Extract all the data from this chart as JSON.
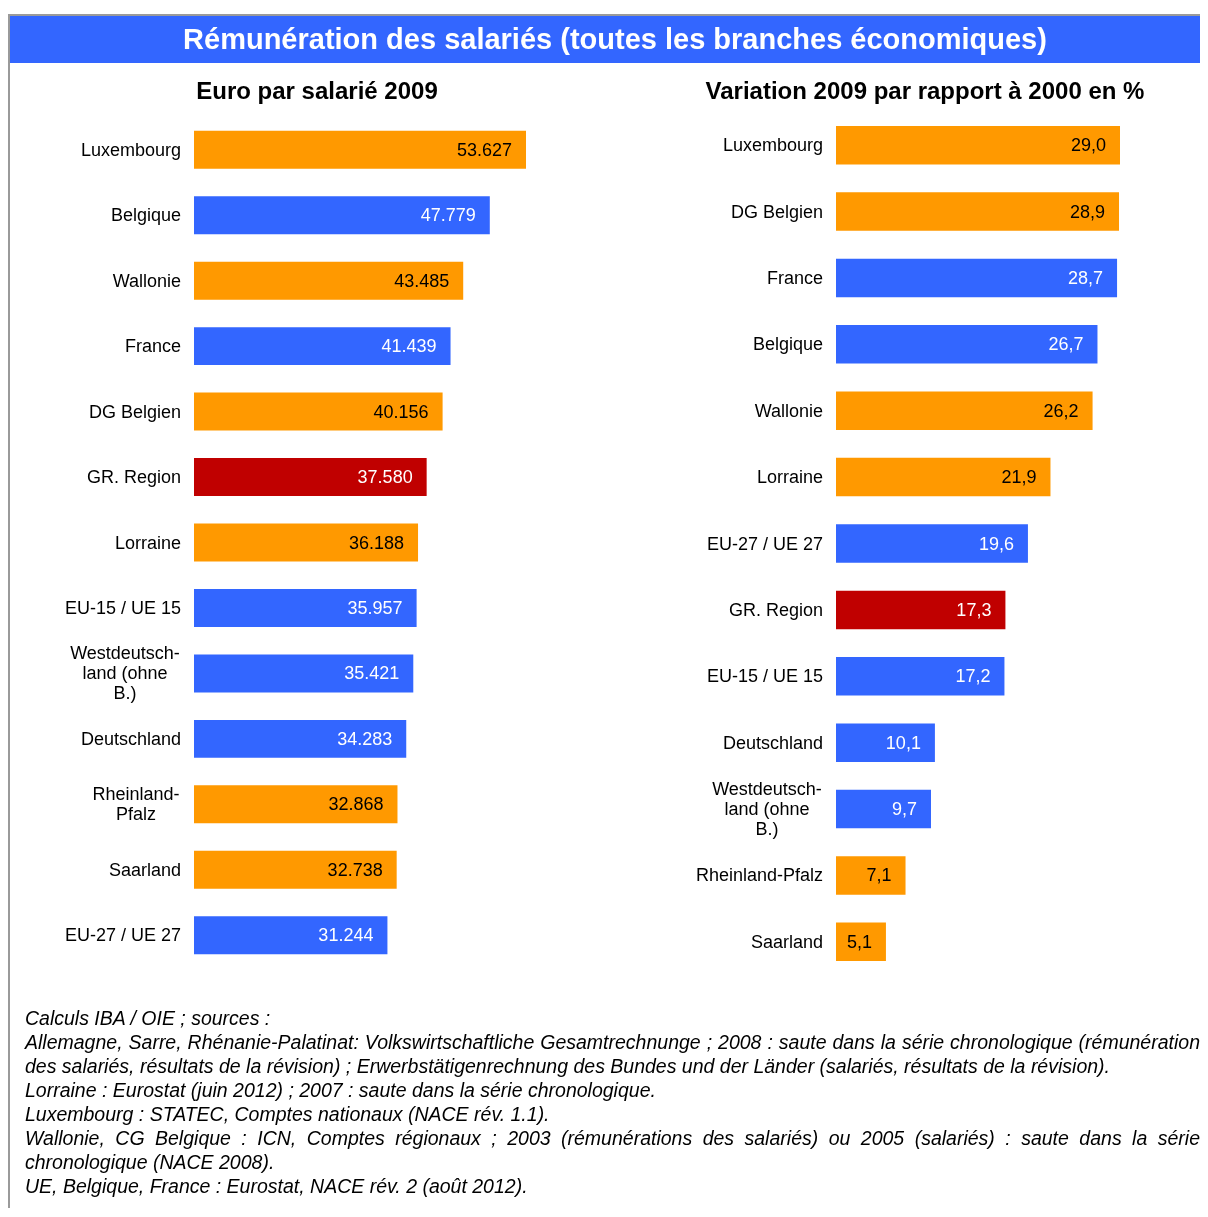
{
  "chart_data": [
    {
      "type": "bar",
      "orientation": "horizontal",
      "title": "Rémunération des salariés (toutes les branches économiques)",
      "subtitle": "Euro par salarié 2009",
      "tick_labels": "y",
      "categories": [
        "Luxembourg",
        "Belgique",
        "Wallonie",
        "France",
        "DG Belgien",
        "GR. Region",
        "Lorraine",
        "EU-15 / UE 15",
        "Westdeutsch-\nland (ohne\nB.)",
        "Deutschland",
        "Rheinland-\nPfalz",
        "Saarland",
        "EU-27 / UE 27"
      ],
      "values": [
        53627,
        47779,
        43485,
        41439,
        40156,
        37580,
        36188,
        35957,
        35421,
        34283,
        32868,
        32738,
        31244
      ],
      "value_labels": [
        "53.627",
        "47.779",
        "43.485",
        "41.439",
        "40.156",
        "37.580",
        "36.188",
        "35.957",
        "35.421",
        "34.283",
        "32.868",
        "32.738",
        "31.244"
      ],
      "colors": [
        "#ff9900",
        "#3366ff",
        "#ff9900",
        "#3366ff",
        "#ff9900",
        "#c00000",
        "#ff9900",
        "#3366ff",
        "#3366ff",
        "#3366ff",
        "#ff9900",
        "#ff9900",
        "#3366ff"
      ]
    },
    {
      "type": "bar",
      "orientation": "horizontal",
      "title": "Variation 2009 par rapport à 2000 en %",
      "tick_labels": "y",
      "categories": [
        "Luxembourg",
        "DG Belgien",
        "France",
        "Belgique",
        "Wallonie",
        "Lorraine",
        "EU-27 / UE 27",
        "GR. Region",
        "EU-15 / UE 15",
        "Deutschland",
        "Westdeutsch-\nland (ohne\nB.)",
        "Rheinland-Pfalz",
        "Saarland"
      ],
      "values": [
        29.0,
        28.9,
        28.7,
        26.7,
        26.2,
        21.9,
        19.6,
        17.3,
        17.2,
        10.1,
        9.7,
        7.1,
        5.1
      ],
      "value_labels": [
        "29,0",
        "28,9",
        "28,7",
        "26,7",
        "26,2",
        "21,9",
        "19,6",
        "17,3",
        "17,2",
        "10,1",
        "9,7",
        "7,1",
        "5,1"
      ],
      "colors": [
        "#ff9900",
        "#ff9900",
        "#3366ff",
        "#3366ff",
        "#ff9900",
        "#ff9900",
        "#3366ff",
        "#c00000",
        "#3366ff",
        "#3366ff",
        "#3366ff",
        "#ff9900",
        "#ff9900"
      ],
      "annotations": [
        "Calculs IBA / OIE ; sources :",
        "Allemagne, Sarre, Rhénanie-Palatinat: Volkswirtschaftliche Gesamtrechnunge ; 2008 : saute dans la série chronologique (rémunération des salariés, résultats de la révision) ; Erwerbstätigenrechnung des Bundes und der Länder (salariés, résultats de la révision).",
        "Lorraine : Eurostat (juin 2012) ; 2007 : saute dans la série chronologique.",
        "Luxembourg : STATEC, Comptes nationaux (NACE rév. 1.1).",
        "Wallonie, CG Belgique : ICN, Comptes régionaux ; 2003 (rémunérations des salariés) ou 2005 (salariés) : saute dans la série chronologique (NACE 2008).",
        "UE, Belgique, France : Eurostat, NACE rév. 2 (août 2012)."
      ]
    }
  ]
}
